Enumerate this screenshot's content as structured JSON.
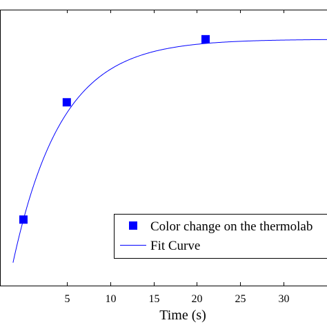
{
  "chart_data": {
    "type": "scatter",
    "xlabel": "Time (s)",
    "ylabel": "",
    "title": "",
    "xlim": [
      -2.7,
      35
    ],
    "ylim": [
      0,
      1.12
    ],
    "xticks": [
      5,
      10,
      15,
      20,
      25,
      30
    ],
    "grid": false,
    "legend_position": "bottom-right",
    "series": [
      {
        "name": "Color change on the thermolab",
        "kind": "markers",
        "marker": "square",
        "color": "#0000ff",
        "points": [
          {
            "x": 0,
            "y": 0.268
          },
          {
            "x": 5,
            "y": 0.744
          },
          {
            "x": 21,
            "y": 1.0
          }
        ]
      },
      {
        "name": "Fit Curve",
        "kind": "line",
        "color": "#0000ff",
        "model": {
          "a": 1.04,
          "y0": 0.0,
          "tau": 5.6
        },
        "x_range": [
          0,
          35
        ]
      }
    ]
  },
  "colors": {
    "series": "#0000ff",
    "axis": "#000000",
    "background": "#ffffff"
  }
}
